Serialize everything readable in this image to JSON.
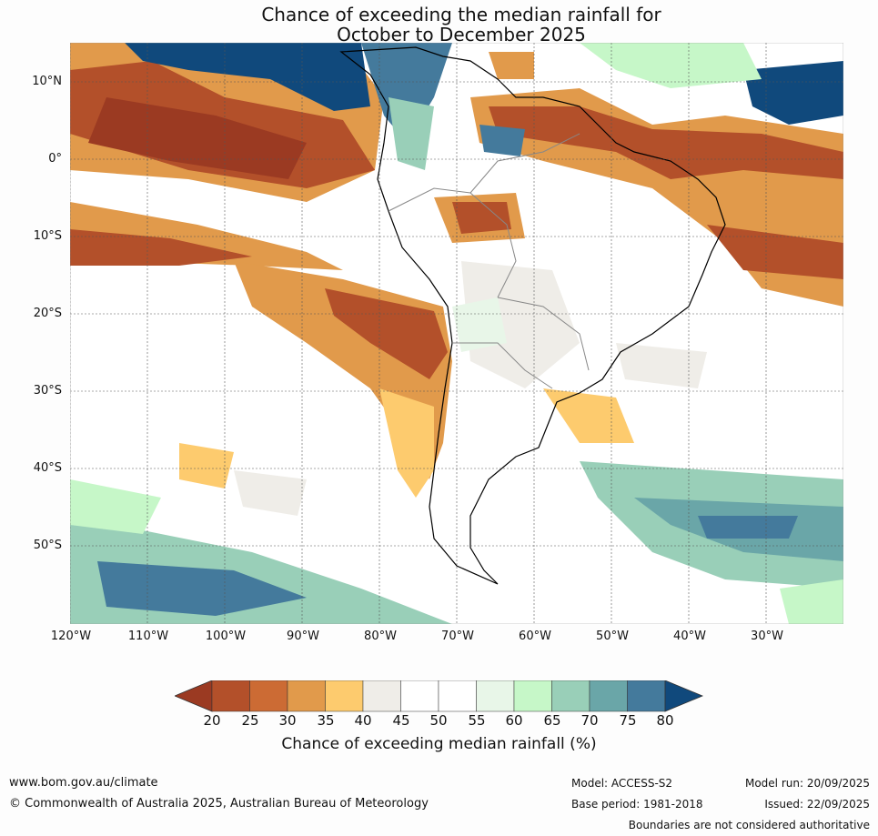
{
  "title": {
    "line1": "Chance of exceeding the median rainfall for",
    "line2": "October to December 2025"
  },
  "map": {
    "lat_labels": [
      "10°N",
      "0°",
      "10°S",
      "20°S",
      "30°S",
      "40°S",
      "50°S"
    ],
    "lon_labels": [
      "120°W",
      "110°W",
      "100°W",
      "90°W",
      "80°W",
      "70°W",
      "60°W",
      "50°W",
      "40°W",
      "30°W"
    ],
    "continent": "South America"
  },
  "legend": {
    "ticks": [
      "20",
      "25",
      "30",
      "35",
      "40",
      "45",
      "50",
      "55",
      "60",
      "65",
      "70",
      "75",
      "80"
    ],
    "colors": [
      "#9b3a22",
      "#b3502a",
      "#cc6b34",
      "#e19a4b",
      "#fdcb6e",
      "#efede8",
      "#ffffff",
      "#ffffff",
      "#e8f6e8",
      "#c6f7c8",
      "#99cfb8",
      "#6aa6a8",
      "#447a9c",
      "#10497c"
    ],
    "title": "Chance of exceeding median rainfall (%)"
  },
  "footer": {
    "url": "www.bom.gov.au/climate",
    "copyright": "© Commonwealth of Australia 2025, Australian Bureau of Meteorology",
    "model": "Model: ACCESS-S2",
    "base_period": "Base period: 1981-2018",
    "model_run": "Model run: 20/09/2025",
    "issued": "Issued: 22/09/2025",
    "disclaimer": "Boundaries are not considered authoritative"
  }
}
